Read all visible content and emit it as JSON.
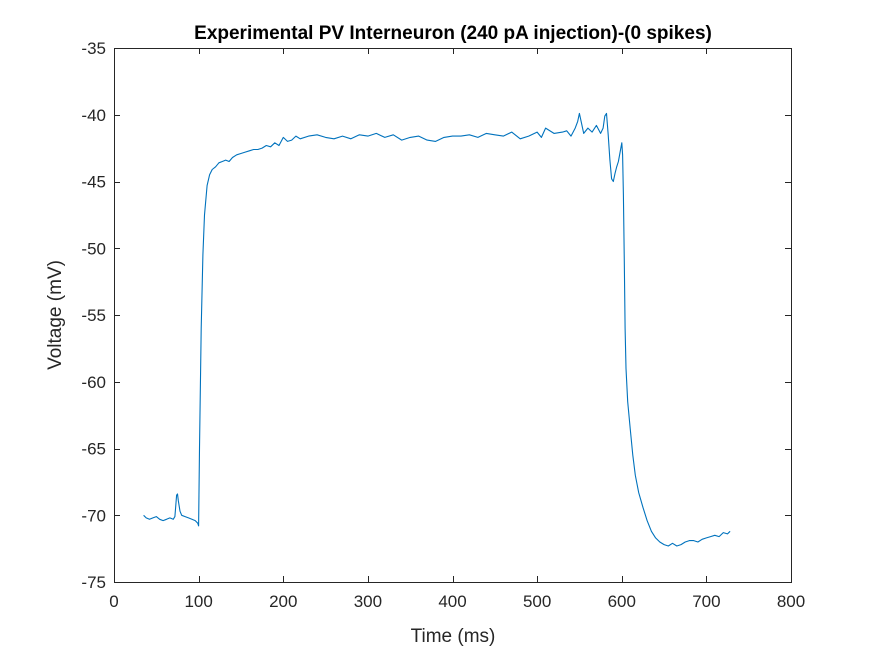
{
  "chart_data": {
    "type": "line",
    "title": "Experimental PV Interneuron (240 pA injection)-(0 spikes)",
    "xlabel": "Time (ms)",
    "ylabel": "Voltage (mV)",
    "xlim": [
      0,
      800
    ],
    "ylim": [
      -75,
      -35
    ],
    "xticks": [
      0,
      100,
      200,
      300,
      400,
      500,
      600,
      700,
      800
    ],
    "yticks": [
      -35,
      -40,
      -45,
      -50,
      -55,
      -60,
      -65,
      -70,
      -75
    ],
    "grid": false,
    "legend": "none",
    "series": [
      {
        "color": "#0072BD",
        "x": [
          35,
          38,
          42,
          46,
          50,
          54,
          58,
          62,
          66,
          70,
          72,
          74,
          75,
          76,
          78,
          80,
          84,
          88,
          92,
          96,
          99,
          100,
          101,
          103,
          105,
          107,
          110,
          113,
          116,
          120,
          124,
          128,
          132,
          136,
          140,
          145,
          150,
          155,
          160,
          165,
          170,
          175,
          180,
          185,
          190,
          195,
          200,
          205,
          210,
          215,
          220,
          230,
          240,
          250,
          260,
          270,
          280,
          290,
          300,
          310,
          320,
          330,
          340,
          350,
          360,
          370,
          380,
          390,
          400,
          410,
          420,
          430,
          440,
          450,
          460,
          470,
          480,
          490,
          500,
          505,
          510,
          520,
          530,
          535,
          540,
          545,
          548,
          550,
          555,
          560,
          565,
          570,
          575,
          578,
          580,
          582,
          584,
          586,
          588,
          590,
          592,
          594,
          596,
          598,
          600,
          601,
          602,
          603,
          604,
          605,
          607,
          610,
          613,
          616,
          620,
          625,
          630,
          635,
          640,
          645,
          650,
          655,
          660,
          665,
          670,
          675,
          680,
          685,
          690,
          695,
          700,
          705,
          710,
          715,
          720,
          725,
          728
        ],
        "y": [
          -70.0,
          -70.2,
          -70.3,
          -70.2,
          -70.1,
          -70.3,
          -70.4,
          -70.3,
          -70.2,
          -70.3,
          -70.1,
          -68.5,
          -68.4,
          -68.9,
          -69.7,
          -70.0,
          -70.1,
          -70.2,
          -70.3,
          -70.4,
          -70.6,
          -70.8,
          -65.0,
          -56.0,
          -50.5,
          -47.5,
          -45.3,
          -44.5,
          -44.1,
          -43.9,
          -43.6,
          -43.5,
          -43.4,
          -43.5,
          -43.2,
          -43.0,
          -42.9,
          -42.8,
          -42.7,
          -42.6,
          -42.6,
          -42.5,
          -42.3,
          -42.4,
          -42.1,
          -42.3,
          -41.7,
          -42.0,
          -41.9,
          -41.6,
          -41.8,
          -41.6,
          -41.5,
          -41.7,
          -41.8,
          -41.6,
          -41.8,
          -41.5,
          -41.6,
          -41.4,
          -41.7,
          -41.5,
          -41.9,
          -41.7,
          -41.6,
          -41.9,
          -42.0,
          -41.7,
          -41.6,
          -41.6,
          -41.5,
          -41.7,
          -41.4,
          -41.5,
          -41.6,
          -41.3,
          -41.8,
          -41.6,
          -41.3,
          -41.7,
          -41.0,
          -41.4,
          -41.3,
          -41.2,
          -41.6,
          -41.0,
          -40.5,
          -39.9,
          -41.4,
          -41.0,
          -41.3,
          -40.8,
          -41.4,
          -41.0,
          -40.1,
          -39.9,
          -41.5,
          -43.4,
          -44.8,
          -45.0,
          -44.4,
          -43.9,
          -43.5,
          -42.8,
          -42.1,
          -43.0,
          -46.0,
          -51.0,
          -56.0,
          -59.0,
          -61.5,
          -63.5,
          -65.5,
          -67.0,
          -68.3,
          -69.4,
          -70.4,
          -71.2,
          -71.7,
          -72.0,
          -72.2,
          -72.3,
          -72.1,
          -72.3,
          -72.2,
          -72.0,
          -71.9,
          -71.9,
          -72.0,
          -71.8,
          -71.7,
          -71.6,
          -71.5,
          -71.6,
          -71.3,
          -71.4,
          -71.2
        ]
      }
    ]
  }
}
